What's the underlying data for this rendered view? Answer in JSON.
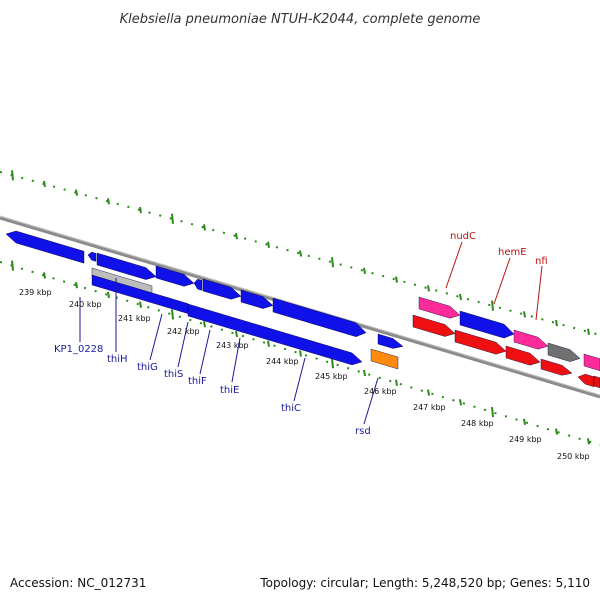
{
  "title": "Klebsiella pneumoniae NTUH-K2044, complete genome",
  "footer": {
    "accession": "Accession: NC_012731",
    "summary": "Topology: circular; Length: 5,248,520 bp; Genes: 5,110"
  },
  "colors": {
    "blue": "#1010e8",
    "blue_light": "#4a4aff",
    "red": "#ee1010",
    "pink": "#ff2b9a",
    "gray": "#707070",
    "silver": "#bcbcbc",
    "orange": "#ff8a0e",
    "tick_green": "#2a8a1a",
    "label_blue": "#1a1a9a",
    "label_red": "#bb1111"
  },
  "kbp_labels": [
    "239 kbp",
    "240 kbp",
    "241 kbp",
    "242 kbp",
    "243 kbp",
    "244 kbp",
    "245 kbp",
    "246 kbp",
    "247 kbp",
    "248 kbp",
    "249 kbp",
    "250 kbp"
  ],
  "gene_labels": {
    "KP1_0228": "KP1_0228",
    "thiH": "thiH",
    "thiG": "thiG",
    "thiS": "thiS",
    "thiF": "thiF",
    "thiE": "thiE",
    "thiC": "thiC",
    "rsd": "rsd",
    "nudC": "nudC",
    "hemE": "hemE",
    "nfi": "nfi"
  }
}
